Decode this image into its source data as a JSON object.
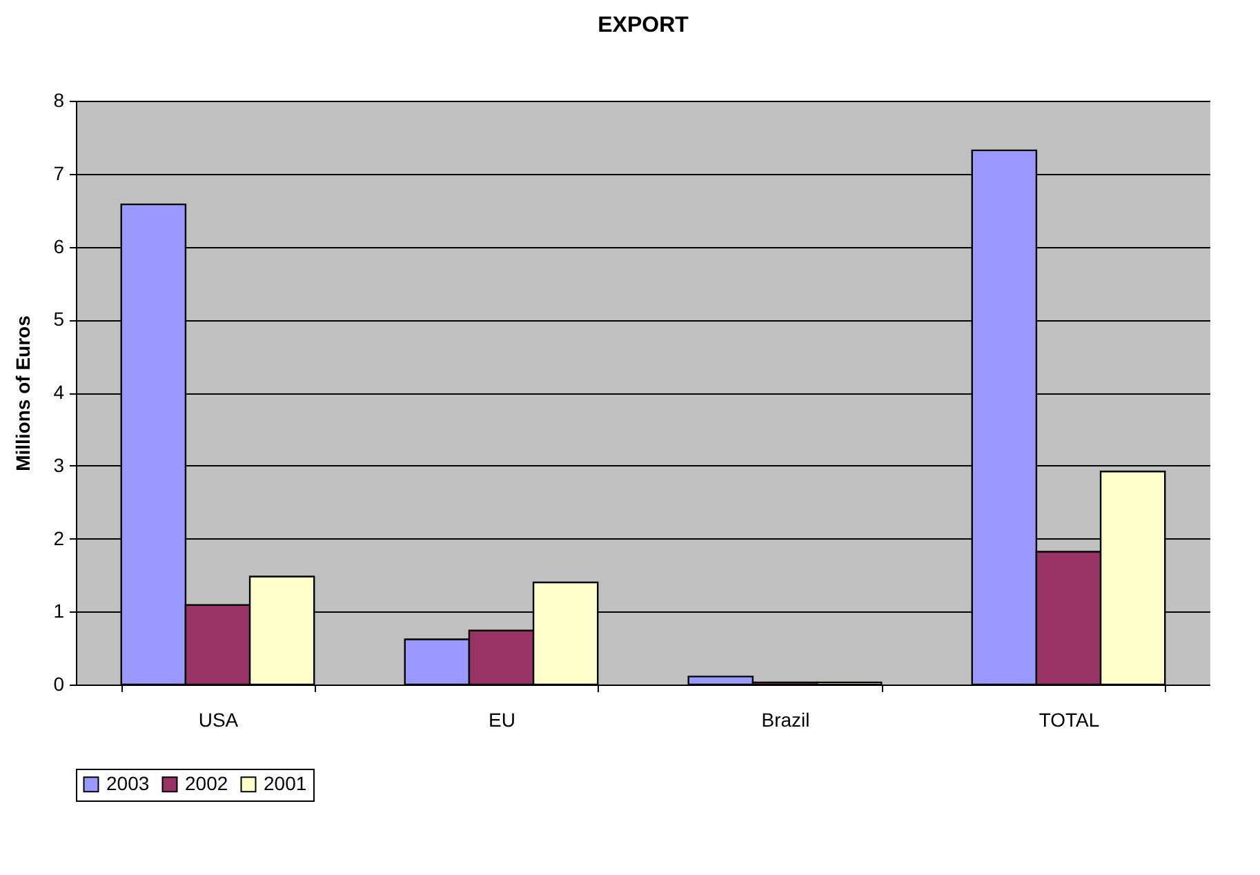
{
  "chart_data": {
    "type": "bar",
    "title": "EXPORT",
    "ylabel": "Millions of Euros",
    "categories": [
      "USA",
      "EU",
      "Brazil",
      "TOTAL"
    ],
    "series": [
      {
        "name": "2003",
        "color": "#9999ff",
        "values": [
          6.58,
          0.62,
          0.11,
          7.32
        ]
      },
      {
        "name": "2002",
        "color": "#993366",
        "values": [
          1.09,
          0.74,
          0.03,
          1.82
        ]
      },
      {
        "name": "2001",
        "color": "#ffffcc",
        "values": [
          1.48,
          1.4,
          0.03,
          2.92
        ]
      }
    ],
    "ylim": [
      0,
      8
    ],
    "yticks": [
      0,
      1,
      2,
      3,
      4,
      5,
      6,
      7,
      8
    ],
    "grid": "y",
    "legend": "bottom"
  }
}
